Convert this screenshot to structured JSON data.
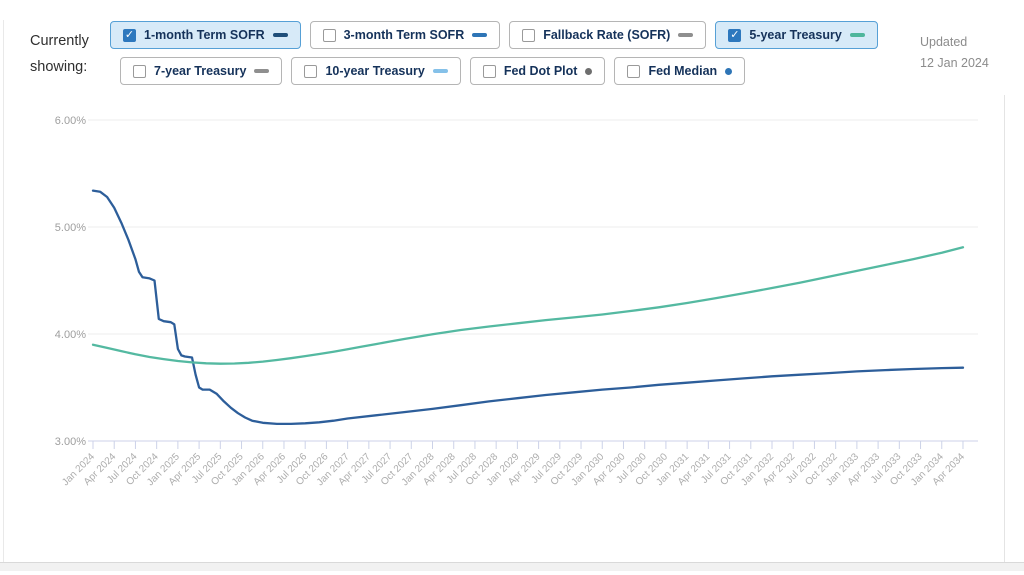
{
  "header": {
    "currently_showing": "Currently showing:",
    "updated_label": "Updated",
    "updated_date": "12 Jan 2024"
  },
  "toggles": [
    {
      "label": "1-month Term SOFR",
      "checked": true,
      "swatch": "dash",
      "color": "#1f4e79"
    },
    {
      "label": "3-month Term SOFR",
      "checked": false,
      "swatch": "dash",
      "color": "#2e75b6"
    },
    {
      "label": "Fallback Rate (SOFR)",
      "checked": false,
      "swatch": "dash",
      "color": "#8f8f8f"
    },
    {
      "label": "5-year Treasury",
      "checked": true,
      "swatch": "dash",
      "color": "#4fb69c"
    },
    {
      "label": "7-year Treasury",
      "checked": false,
      "swatch": "dash",
      "color": "#8f8f8f"
    },
    {
      "label": "10-year Treasury",
      "checked": false,
      "swatch": "dash",
      "color": "#85c1e9"
    },
    {
      "label": "Fed Dot Plot",
      "checked": false,
      "swatch": "dot",
      "color": "#6e6e6e"
    },
    {
      "label": "Fed Median",
      "checked": false,
      "swatch": "dot",
      "color": "#2e75b6"
    }
  ],
  "chart_data": {
    "type": "line",
    "title": "",
    "xlabel": "",
    "ylabel": "",
    "x_axis": {
      "unit": "month",
      "interval": "quarterly",
      "labels": [
        "Jan 2024",
        "Apr 2024",
        "Jul 2024",
        "Oct 2024",
        "Jan 2025",
        "Apr 2025",
        "Jul 2025",
        "Oct 2025",
        "Jan 2026",
        "Apr 2026",
        "Jul 2026",
        "Oct 2026",
        "Jan 2027",
        "Apr 2027",
        "Jul 2027",
        "Oct 2027",
        "Jan 2028",
        "Apr 2028",
        "Jul 2028",
        "Oct 2028",
        "Jan 2029",
        "Apr 2029",
        "Jul 2029",
        "Oct 2029",
        "Jan 2030",
        "Apr 2030",
        "Jul 2030",
        "Oct 2030",
        "Jan 2031",
        "Apr 2031",
        "Jul 2031",
        "Oct 2031",
        "Jan 2032",
        "Apr 2032",
        "Jul 2032",
        "Oct 2032",
        "Jan 2033",
        "Apr 2033",
        "Jul 2033",
        "Oct 2033",
        "Jan 2034",
        "Apr 2034"
      ]
    },
    "y_axis": {
      "ticks": [
        "3.00%",
        "4.00%",
        "5.00%",
        "6.00%"
      ],
      "min": 3,
      "max": 6,
      "unit": "%",
      "grid": true
    },
    "legend_position": "top-toggles",
    "series": [
      {
        "name": "1-month Term SOFR",
        "color": "#2d5e9a",
        "points": [
          [
            0,
            5.34
          ],
          [
            1,
            5.33
          ],
          [
            2,
            5.28
          ],
          [
            3,
            5.18
          ],
          [
            4,
            5.04
          ],
          [
            5,
            4.88
          ],
          [
            6,
            4.7
          ],
          [
            6.5,
            4.58
          ],
          [
            7,
            4.53
          ],
          [
            8,
            4.52
          ],
          [
            8.7,
            4.5
          ],
          [
            9.3,
            4.14
          ],
          [
            10,
            4.12
          ],
          [
            11,
            4.11
          ],
          [
            11.5,
            4.09
          ],
          [
            12,
            3.86
          ],
          [
            12.5,
            3.8
          ],
          [
            13,
            3.79
          ],
          [
            14,
            3.78
          ],
          [
            14.5,
            3.62
          ],
          [
            15,
            3.5
          ],
          [
            15.5,
            3.48
          ],
          [
            16.5,
            3.48
          ],
          [
            17.5,
            3.44
          ],
          [
            18.5,
            3.37
          ],
          [
            19.5,
            3.31
          ],
          [
            20.5,
            3.26
          ],
          [
            21.5,
            3.22
          ],
          [
            22.5,
            3.19
          ],
          [
            24,
            3.17
          ],
          [
            26,
            3.16
          ],
          [
            28,
            3.16
          ],
          [
            30,
            3.165
          ],
          [
            32,
            3.175
          ],
          [
            34,
            3.19
          ],
          [
            36,
            3.21
          ],
          [
            40,
            3.24
          ],
          [
            44,
            3.27
          ],
          [
            48,
            3.3
          ],
          [
            52,
            3.335
          ],
          [
            56,
            3.37
          ],
          [
            60,
            3.4
          ],
          [
            64,
            3.43
          ],
          [
            68,
            3.455
          ],
          [
            72,
            3.48
          ],
          [
            76,
            3.5
          ],
          [
            80,
            3.525
          ],
          [
            84,
            3.545
          ],
          [
            88,
            3.565
          ],
          [
            92,
            3.585
          ],
          [
            96,
            3.605
          ],
          [
            100,
            3.62
          ],
          [
            104,
            3.635
          ],
          [
            108,
            3.65
          ],
          [
            112,
            3.663
          ],
          [
            116,
            3.673
          ],
          [
            120,
            3.681
          ],
          [
            123,
            3.685
          ]
        ]
      },
      {
        "name": "5-year Treasury",
        "color": "#54b9a1",
        "points": [
          [
            0,
            3.9
          ],
          [
            2,
            3.87
          ],
          [
            4,
            3.84
          ],
          [
            6,
            3.81
          ],
          [
            8,
            3.785
          ],
          [
            10,
            3.765
          ],
          [
            12,
            3.748
          ],
          [
            14,
            3.735
          ],
          [
            16,
            3.726
          ],
          [
            18,
            3.722
          ],
          [
            20,
            3.724
          ],
          [
            22,
            3.731
          ],
          [
            24,
            3.742
          ],
          [
            26,
            3.757
          ],
          [
            28,
            3.774
          ],
          [
            30,
            3.793
          ],
          [
            32,
            3.813
          ],
          [
            34,
            3.835
          ],
          [
            36,
            3.858
          ],
          [
            38,
            3.882
          ],
          [
            40,
            3.906
          ],
          [
            42,
            3.93
          ],
          [
            44,
            3.953
          ],
          [
            46,
            3.976
          ],
          [
            48,
            3.998
          ],
          [
            50,
            4.018
          ],
          [
            52,
            4.037
          ],
          [
            56,
            4.07
          ],
          [
            60,
            4.1
          ],
          [
            64,
            4.13
          ],
          [
            68,
            4.155
          ],
          [
            72,
            4.182
          ],
          [
            76,
            4.215
          ],
          [
            80,
            4.25
          ],
          [
            84,
            4.29
          ],
          [
            88,
            4.335
          ],
          [
            92,
            4.38
          ],
          [
            96,
            4.43
          ],
          [
            100,
            4.48
          ],
          [
            104,
            4.535
          ],
          [
            108,
            4.59
          ],
          [
            112,
            4.645
          ],
          [
            116,
            4.7
          ],
          [
            120,
            4.76
          ],
          [
            123,
            4.81
          ]
        ]
      }
    ]
  }
}
